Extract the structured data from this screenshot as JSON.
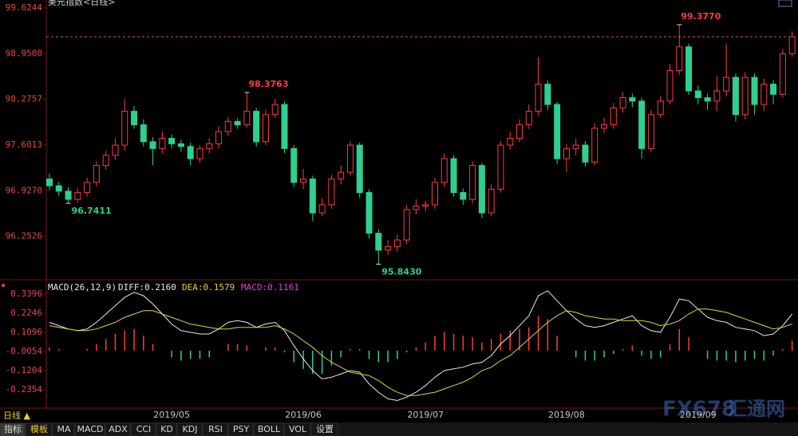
{
  "title": "美元指数<日线>",
  "chart_data": [
    {
      "type": "candlestick",
      "up_color": "#ff3b3b",
      "down_color": "#2fd08f",
      "ylim": [
        95.6244,
        99.742
      ],
      "yticks": [
        99.6244,
        {
          "value": 98.95,
          "label": "98.9500"
        },
        98.2757,
        97.6013,
        {
          "value": 96.927,
          "label": "96.9270"
        },
        96.2526
      ],
      "x_labels": [
        {
          "index": 13,
          "label": "2019/05"
        },
        {
          "index": 27,
          "label": "2019/06"
        },
        {
          "index": 40,
          "label": "2019/07"
        },
        {
          "index": 55,
          "label": "2019/08"
        },
        {
          "index": 69,
          "label": "2019/09"
        }
      ],
      "annotations": [
        {
          "value": 99.377,
          "label": "99.3770"
        },
        {
          "value": 98.3763,
          "label": "98.3763"
        },
        {
          "value": 96.7411,
          "label": "96.7411"
        },
        {
          "value": 95.843,
          "label": "95.8430"
        }
      ],
      "open": [
        97.1,
        97.0,
        96.92,
        96.8,
        96.9,
        97.05,
        97.3,
        97.45,
        97.6,
        98.1,
        97.9,
        97.65,
        97.55,
        97.7,
        97.62,
        97.58,
        97.4,
        97.55,
        97.62,
        97.8,
        97.95,
        97.9,
        98.1,
        97.65,
        98.05,
        98.2,
        97.55,
        97.05,
        97.1,
        96.6,
        96.72,
        97.1,
        97.2,
        97.6,
        96.9,
        96.3,
        96.05,
        96.1,
        96.2,
        96.65,
        96.7,
        96.72,
        97.05,
        97.4,
        96.9,
        96.8,
        97.3,
        96.6,
        96.95,
        97.6,
        97.7,
        97.9,
        98.1,
        98.5,
        98.2,
        97.4,
        97.55,
        97.6,
        97.35,
        97.85,
        97.9,
        98.15,
        98.3,
        98.25,
        97.55,
        98.05,
        98.25,
        98.7,
        99.05,
        98.4,
        98.3,
        98.25,
        98.4,
        98.6,
        98.05,
        98.6,
        98.2,
        98.5,
        98.35,
        98.95
      ],
      "high": [
        97.18,
        97.06,
        96.98,
        96.97,
        97.12,
        97.36,
        97.52,
        97.7,
        98.28,
        98.18,
        97.98,
        97.72,
        97.8,
        97.76,
        97.68,
        97.64,
        97.6,
        97.7,
        97.88,
        98.02,
        98.0,
        98.3763,
        98.15,
        98.12,
        98.28,
        98.24,
        97.6,
        97.25,
        97.15,
        96.82,
        97.16,
        97.3,
        97.66,
        97.64,
        96.95,
        96.36,
        96.2,
        96.28,
        96.72,
        96.8,
        96.78,
        97.12,
        97.48,
        97.45,
        96.96,
        97.36,
        97.34,
        97.02,
        97.66,
        97.8,
        97.98,
        98.2,
        98.9,
        98.56,
        98.24,
        97.62,
        97.7,
        97.66,
        97.92,
        98.0,
        98.22,
        98.38,
        98.36,
        98.3,
        98.12,
        98.32,
        98.8,
        99.377,
        99.1,
        98.48,
        98.36,
        98.62,
        99.1,
        98.66,
        98.68,
        98.66,
        98.58,
        98.56,
        99.02,
        99.28
      ],
      "low": [
        96.93,
        96.85,
        96.7411,
        96.75,
        96.84,
        96.99,
        97.24,
        97.38,
        97.52,
        97.84,
        97.58,
        97.3,
        97.48,
        97.55,
        97.5,
        97.3,
        97.34,
        97.48,
        97.55,
        97.74,
        97.84,
        97.86,
        97.58,
        97.6,
        98.0,
        97.48,
        96.98,
        96.95,
        96.48,
        96.55,
        96.66,
        97.02,
        97.15,
        96.82,
        96.22,
        95.843,
        95.98,
        96.02,
        96.14,
        96.58,
        96.62,
        96.66,
        96.98,
        96.84,
        96.72,
        96.74,
        96.52,
        96.55,
        96.9,
        97.54,
        97.64,
        97.84,
        98.04,
        98.12,
        97.32,
        97.2,
        97.45,
        97.28,
        97.3,
        97.78,
        97.84,
        98.08,
        98.16,
        97.4,
        97.5,
        98.0,
        98.2,
        98.64,
        98.34,
        98.2,
        98.12,
        98.1,
        98.32,
        97.95,
        97.98,
        98.05,
        98.1,
        98.2,
        98.3,
        98.9
      ],
      "close": [
        97.0,
        96.92,
        96.8,
        96.9,
        97.05,
        97.3,
        97.45,
        97.6,
        98.1,
        97.9,
        97.65,
        97.55,
        97.7,
        97.62,
        97.58,
        97.4,
        97.55,
        97.62,
        97.8,
        97.95,
        97.9,
        98.1,
        97.65,
        98.05,
        98.2,
        97.55,
        97.05,
        97.1,
        96.6,
        96.72,
        97.1,
        97.2,
        97.6,
        96.9,
        96.3,
        96.05,
        96.1,
        96.2,
        96.65,
        96.7,
        96.72,
        97.05,
        97.4,
        96.9,
        96.8,
        97.3,
        96.6,
        96.95,
        97.6,
        97.7,
        97.9,
        98.1,
        98.5,
        98.2,
        97.4,
        97.55,
        97.6,
        97.35,
        97.85,
        97.9,
        98.15,
        98.3,
        98.25,
        97.55,
        98.05,
        98.25,
        98.7,
        99.05,
        98.4,
        98.3,
        98.25,
        98.4,
        98.6,
        98.05,
        98.6,
        98.2,
        98.5,
        98.35,
        98.95,
        99.2
      ]
    },
    {
      "type": "macd",
      "indicator": "MACD(26,12,9)",
      "ylim": [
        -0.336,
        0.4067
      ],
      "yticks": [
        0.3396,
        0.2246,
        0.1096,
        -0.0054,
        -0.1204,
        -0.2354
      ],
      "series": [
        {
          "label": "DIFF:0.2160",
          "color": "#e8e8e8",
          "values": [
            0.17,
            0.15,
            0.13,
            0.12,
            0.13,
            0.17,
            0.22,
            0.27,
            0.32,
            0.35,
            0.33,
            0.28,
            0.22,
            0.16,
            0.12,
            0.11,
            0.1,
            0.1,
            0.13,
            0.17,
            0.18,
            0.17,
            0.14,
            0.16,
            0.17,
            0.12,
            0.03,
            -0.05,
            -0.12,
            -0.17,
            -0.16,
            -0.14,
            -0.12,
            -0.13,
            -0.2,
            -0.25,
            -0.29,
            -0.3,
            -0.28,
            -0.25,
            -0.21,
            -0.16,
            -0.12,
            -0.11,
            -0.1,
            -0.08,
            -0.07,
            -0.03,
            0.04,
            0.09,
            0.15,
            0.21,
            0.33,
            0.36,
            0.3,
            0.24,
            0.19,
            0.15,
            0.14,
            0.15,
            0.17,
            0.19,
            0.21,
            0.15,
            0.12,
            0.11,
            0.2,
            0.31,
            0.3,
            0.25,
            0.2,
            0.18,
            0.17,
            0.14,
            0.13,
            0.12,
            0.09,
            0.1,
            0.15,
            0.22
          ]
        },
        {
          "label": "DEA:0.1579",
          "color": "#e6d23a",
          "values": [
            0.15,
            0.14,
            0.13,
            0.12,
            0.12,
            0.13,
            0.15,
            0.17,
            0.2,
            0.22,
            0.24,
            0.24,
            0.22,
            0.2,
            0.18,
            0.16,
            0.15,
            0.14,
            0.13,
            0.13,
            0.14,
            0.14,
            0.14,
            0.14,
            0.15,
            0.13,
            0.1,
            0.06,
            0.02,
            -0.03,
            -0.07,
            -0.1,
            -0.13,
            -0.14,
            -0.15,
            -0.18,
            -0.22,
            -0.25,
            -0.27,
            -0.27,
            -0.26,
            -0.25,
            -0.23,
            -0.21,
            -0.19,
            -0.16,
            -0.12,
            -0.1,
            -0.06,
            -0.03,
            0.02,
            0.07,
            0.12,
            0.17,
            0.21,
            0.24,
            0.23,
            0.21,
            0.2,
            0.19,
            0.19,
            0.18,
            0.18,
            0.18,
            0.17,
            0.15,
            0.16,
            0.18,
            0.22,
            0.25,
            0.25,
            0.24,
            0.23,
            0.21,
            0.19,
            0.17,
            0.15,
            0.13,
            0.14,
            0.16
          ]
        }
      ],
      "histogram": {
        "label": "MACD:0.1161",
        "label_color": "#e040e0",
        "up_color": "#ff3b3b",
        "down_color": "#2fd08f",
        "values": [
          0.02,
          0.01,
          0,
          0,
          0.01,
          0.04,
          0.07,
          0.1,
          0.12,
          0.13,
          0.09,
          0.04,
          0,
          -0.04,
          -0.06,
          -0.05,
          -0.05,
          -0.04,
          0,
          0.04,
          0.04,
          0.03,
          0,
          0.02,
          0.02,
          -0.01,
          -0.07,
          -0.11,
          -0.14,
          -0.14,
          -0.09,
          -0.04,
          0.01,
          0.01,
          -0.05,
          -0.07,
          -0.07,
          -0.05,
          -0.01,
          0.02,
          0.05,
          0.09,
          0.11,
          0.1,
          0.09,
          0.08,
          0.05,
          0.07,
          0.1,
          0.12,
          0.13,
          0.14,
          0.21,
          0.19,
          0.09,
          0,
          -0.04,
          -0.06,
          -0.06,
          -0.04,
          -0.02,
          0.01,
          0.03,
          -0.03,
          -0.05,
          -0.04,
          0.04,
          0.13,
          0.08,
          0,
          -0.05,
          -0.06,
          -0.06,
          -0.07,
          -0.06,
          -0.05,
          -0.06,
          -0.03,
          0.01,
          0.06
        ]
      }
    }
  ],
  "period_label": "日线 ▲",
  "tabs": [
    "指标",
    "模板",
    "MA",
    "MACD",
    "ADX",
    "CCI",
    "KD",
    "KDJ",
    "RSI",
    "PSY",
    "BOLL",
    "VOL",
    "设置"
  ],
  "watermark": [
    "FX678",
    "汇通网"
  ]
}
